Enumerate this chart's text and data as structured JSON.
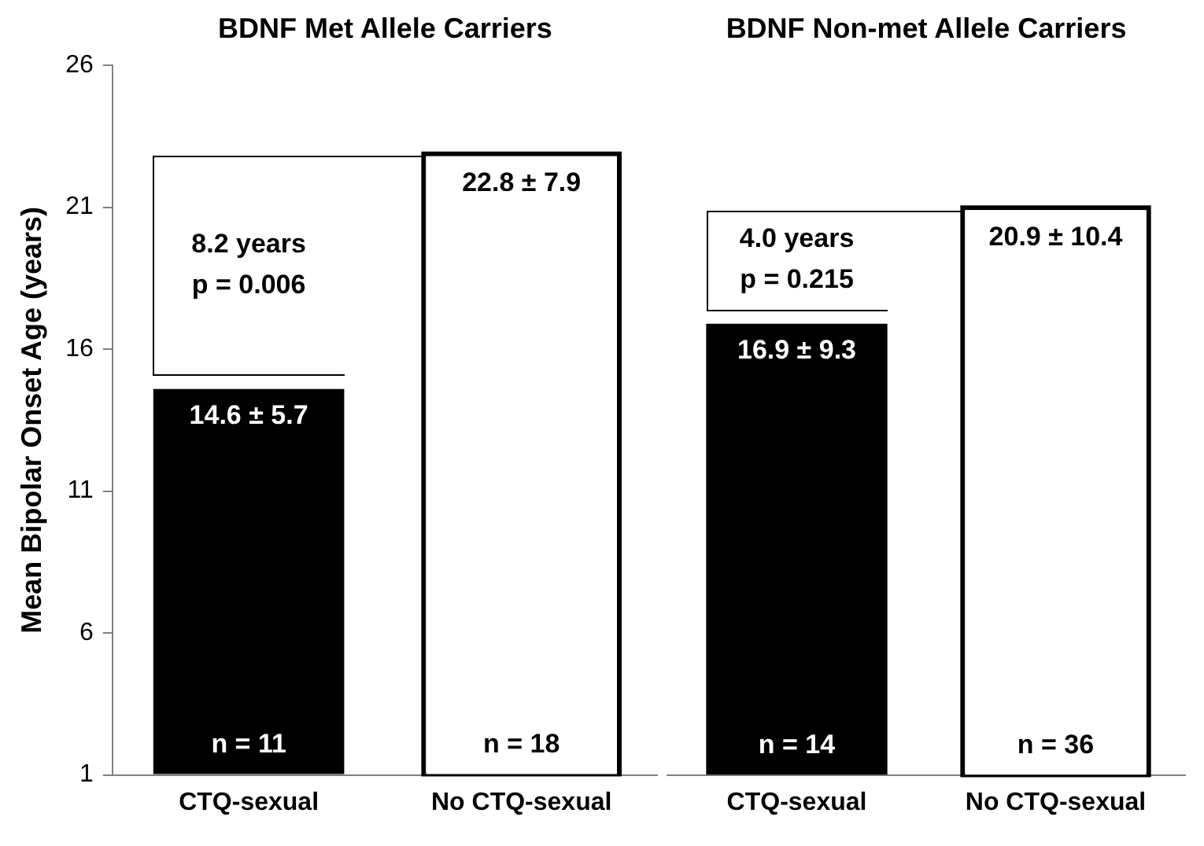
{
  "chart_data": [
    {
      "type": "bar",
      "title": "BDNF Met Allele Carriers",
      "ylabel": "Mean Bipolar Onset Age (years)",
      "categories": [
        "CTQ-sexual",
        "No CTQ-sexual"
      ],
      "values": [
        14.6,
        22.8
      ],
      "colors": [
        "#000000",
        "#ffffff"
      ],
      "value_labels": [
        "14.6 ± 5.7",
        "22.8 ± 7.9"
      ],
      "ylim": [
        1,
        26
      ],
      "yticks": [
        1,
        6,
        11,
        16,
        21,
        26
      ],
      "annotations": [
        "8.2 years",
        "p = 0.006",
        "n = 11",
        "n = 18"
      ]
    },
    {
      "type": "bar",
      "title": "BDNF Non-met Allele Carriers",
      "categories": [
        "CTQ-sexual",
        "No CTQ-sexual"
      ],
      "values": [
        16.9,
        20.9
      ],
      "colors": [
        "#000000",
        "#ffffff"
      ],
      "value_labels": [
        "16.9 ± 9.3",
        "20.9 ± 10.4"
      ],
      "ylim": [
        1,
        26
      ],
      "tick_labels": "x",
      "annotations": [
        "4.0 years",
        "p = 0.215",
        "n = 14",
        "n = 36"
      ]
    }
  ]
}
